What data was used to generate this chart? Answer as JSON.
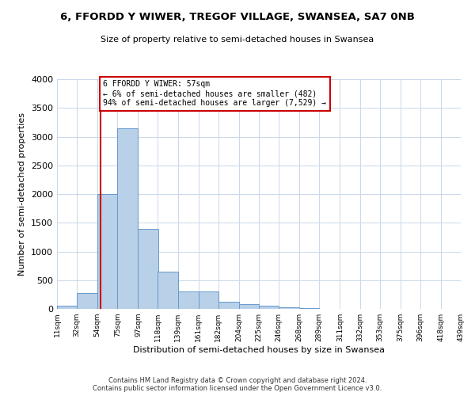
{
  "title": "6, FFORDD Y WIWER, TREGOF VILLAGE, SWANSEA, SA7 0NB",
  "subtitle": "Size of property relative to semi-detached houses in Swansea",
  "xlabel": "Distribution of semi-detached houses by size in Swansea",
  "ylabel": "Number of semi-detached properties",
  "footer_line1": "Contains HM Land Registry data © Crown copyright and database right 2024.",
  "footer_line2": "Contains public sector information licensed under the Open Government Licence v3.0.",
  "annotation_title": "6 FFORDD Y WIWER: 57sqm",
  "annotation_line1": "← 6% of semi-detached houses are smaller (482)",
  "annotation_line2": "94% of semi-detached houses are larger (7,529) →",
  "property_size": 57,
  "bar_color": "#b8d0e8",
  "bar_edge_color": "#6699cc",
  "vline_color": "#cc0000",
  "annotation_box_color": "#cc0000",
  "background_color": "#ffffff",
  "grid_color": "#c8d8ea",
  "bins": [
    11,
    32,
    54,
    75,
    97,
    118,
    139,
    161,
    182,
    204,
    225,
    246,
    268,
    289,
    311,
    332,
    353,
    375,
    396,
    418,
    439
  ],
  "bin_labels": [
    "11sqm",
    "32sqm",
    "54sqm",
    "75sqm",
    "97sqm",
    "118sqm",
    "139sqm",
    "161sqm",
    "182sqm",
    "204sqm",
    "225sqm",
    "246sqm",
    "268sqm",
    "289sqm",
    "311sqm",
    "332sqm",
    "353sqm",
    "375sqm",
    "396sqm",
    "418sqm",
    "439sqm"
  ],
  "counts": [
    50,
    270,
    2000,
    3150,
    1400,
    650,
    300,
    300,
    120,
    80,
    50,
    30,
    20,
    5,
    5,
    5,
    3,
    2,
    2,
    2
  ],
  "ylim": [
    0,
    4000
  ],
  "yticks": [
    0,
    500,
    1000,
    1500,
    2000,
    2500,
    3000,
    3500,
    4000
  ]
}
